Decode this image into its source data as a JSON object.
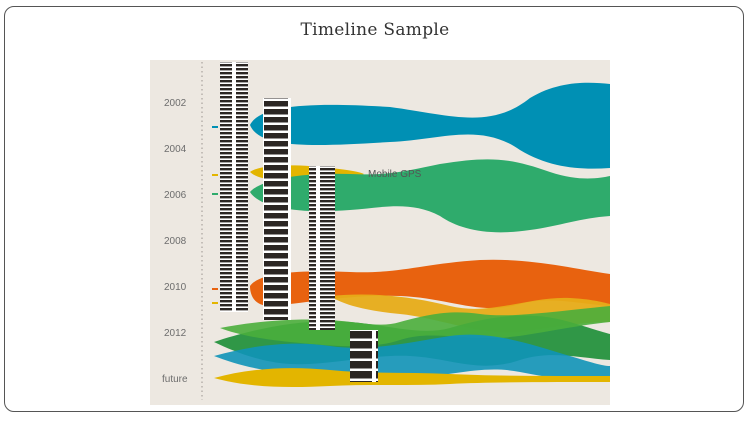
{
  "title": "Timeline Sample",
  "timeline": {
    "year_labels": [
      "2002",
      "2004",
      "2006",
      "2008",
      "2010",
      "2012",
      "future"
    ],
    "annotation": "Mobile GPS"
  },
  "colors": {
    "background": "#ede8e1",
    "blue": "#0090b4",
    "green": "#2fab6c",
    "orange": "#e8620f",
    "yellow": "#e3b500",
    "dark_green": "#1f8f3a",
    "bar_dark": "#2b2623"
  }
}
